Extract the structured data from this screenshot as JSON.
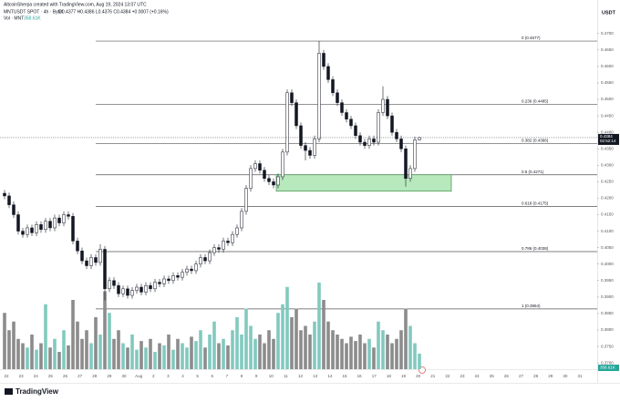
{
  "chart_data": {
    "type": "candlestick",
    "header": "AltcoinSherpa created with TradingView.com, Aug 19, 2024 13:07 UTC",
    "symbol": "MNTUSDT SPOT · 4h · Bybit",
    "ohlc_text": "O0.4377 H0.4386 L0.4376 C0.4384 +0.0007 (+0.16%)",
    "volume_title": "Vol · MNT",
    "volume_value_label": "358.61K",
    "currency": "USDT",
    "countdown": "02:52:14",
    "price_tag": {
      "value": 0.4384,
      "label": "0.4384"
    },
    "brand": "TradingView",
    "up_color": "#ffffff",
    "down_color": "#131722",
    "volume_up_color": "#82c9bf",
    "volume_down_color": "#8c8c8c",
    "zone_color": "#b7e9bd",
    "ylim": [
      0.3681,
      0.4774
    ],
    "yticks": [
      {
        "value": 0.37,
        "label": "0.3700"
      },
      {
        "value": 0.375,
        "label": "0.3750"
      },
      {
        "value": 0.38,
        "label": "0.3800"
      },
      {
        "value": 0.385,
        "label": "0.3850"
      },
      {
        "value": 0.39,
        "label": "0.3900"
      },
      {
        "value": 0.395,
        "label": "0.3950"
      },
      {
        "value": 0.4,
        "label": "0.4000"
      },
      {
        "value": 0.405,
        "label": "0.4050"
      },
      {
        "value": 0.41,
        "label": "0.4100"
      },
      {
        "value": 0.415,
        "label": "0.4150"
      },
      {
        "value": 0.42,
        "label": "0.4200"
      },
      {
        "value": 0.425,
        "label": "0.4250"
      },
      {
        "value": 0.43,
        "label": "0.4300"
      },
      {
        "value": 0.435,
        "label": "0.4350"
      },
      {
        "value": 0.44,
        "label": "0.4400"
      },
      {
        "value": 0.445,
        "label": "0.4450"
      },
      {
        "value": 0.45,
        "label": "0.4500"
      },
      {
        "value": 0.455,
        "label": "0.4550"
      },
      {
        "value": 0.46,
        "label": "0.4600"
      },
      {
        "value": 0.465,
        "label": "0.4650"
      },
      {
        "value": 0.47,
        "label": "0.4700"
      }
    ],
    "x_axis_labels": [
      "22",
      "23",
      "24",
      "25",
      "26",
      "27",
      "28",
      "29",
      "30",
      "Aug",
      "2",
      "3",
      "4",
      "5",
      "6",
      "7",
      "8",
      "9",
      "10",
      "11",
      "12",
      "13",
      "14",
      "15",
      "16",
      "17",
      "18",
      "19",
      "20",
      "21",
      "22",
      "23",
      "24",
      "25",
      "26",
      "27",
      "28",
      "29",
      "30",
      "31"
    ],
    "fib_levels": [
      {
        "value": 0.4677,
        "label": "0 (0.4677)"
      },
      {
        "value": 0.4485,
        "label": "0.236 (0.4485)"
      },
      {
        "value": 0.4366,
        "label": "0.382 (0.4366)"
      },
      {
        "value": 0.4271,
        "label": "0.5 (0.4271)"
      },
      {
        "value": 0.4175,
        "label": "0.618 (0.4175)"
      },
      {
        "value": 0.4038,
        "label": "0.786 (0.4038)"
      },
      {
        "value": 0.3864,
        "label": "1 (0.3864)"
      }
    ],
    "open": [
      0.4215,
      0.4207,
      0.418,
      0.415,
      0.41,
      0.409,
      0.411,
      0.4095,
      0.412,
      0.4105,
      0.413,
      0.411,
      0.414,
      0.4125,
      0.415,
      0.4145,
      0.407,
      0.404,
      0.401,
      0.3995,
      0.402,
      0.4005,
      0.4045,
      0.3925,
      0.395,
      0.3935,
      0.391,
      0.3925,
      0.3905,
      0.392,
      0.393,
      0.3915,
      0.3935,
      0.3925,
      0.3945,
      0.394,
      0.3955,
      0.395,
      0.3965,
      0.396,
      0.3975,
      0.3985,
      0.398,
      0.4,
      0.402,
      0.401,
      0.4035,
      0.405,
      0.4045,
      0.407,
      0.4065,
      0.409,
      0.411,
      0.416,
      0.423,
      0.429,
      0.4305,
      0.4285,
      0.426,
      0.425,
      0.424,
      0.4265,
      0.434,
      0.452,
      0.449,
      0.442,
      0.436,
      0.4345,
      0.433,
      0.438,
      0.464,
      0.46,
      0.456,
      0.452,
      0.449,
      0.446,
      0.444,
      0.442,
      0.439,
      0.437,
      0.436,
      0.438,
      0.437,
      0.446,
      0.45,
      0.445,
      0.44,
      0.438,
      0.435,
      0.426,
      0.429,
      0.4377
    ],
    "high": [
      0.4225,
      0.4217,
      0.419,
      0.416,
      0.411,
      0.412,
      0.412,
      0.413,
      0.413,
      0.414,
      0.414,
      0.415,
      0.415,
      0.416,
      0.416,
      0.4155,
      0.408,
      0.405,
      0.402,
      0.403,
      0.403,
      0.406,
      0.4055,
      0.396,
      0.396,
      0.3945,
      0.3935,
      0.3935,
      0.393,
      0.394,
      0.394,
      0.3945,
      0.3945,
      0.3955,
      0.3955,
      0.3965,
      0.3965,
      0.3975,
      0.3975,
      0.3985,
      0.3995,
      0.3995,
      0.401,
      0.403,
      0.403,
      0.4045,
      0.406,
      0.406,
      0.408,
      0.408,
      0.41,
      0.412,
      0.417,
      0.424,
      0.43,
      0.4315,
      0.4315,
      0.4295,
      0.427,
      0.426,
      0.4275,
      0.435,
      0.453,
      0.453,
      0.45,
      0.443,
      0.437,
      0.4355,
      0.439,
      0.4677,
      0.465,
      0.461,
      0.457,
      0.453,
      0.45,
      0.447,
      0.445,
      0.443,
      0.44,
      0.438,
      0.439,
      0.439,
      0.447,
      0.454,
      0.451,
      0.446,
      0.441,
      0.439,
      0.436,
      0.43,
      0.4387,
      0.4386
    ],
    "low": [
      0.4197,
      0.417,
      0.414,
      0.409,
      0.408,
      0.408,
      0.4085,
      0.4085,
      0.4095,
      0.4095,
      0.41,
      0.41,
      0.4115,
      0.4115,
      0.4135,
      0.406,
      0.403,
      0.4,
      0.3985,
      0.3985,
      0.3995,
      0.3995,
      0.389,
      0.3915,
      0.3925,
      0.39,
      0.39,
      0.3895,
      0.3895,
      0.391,
      0.3905,
      0.3905,
      0.3915,
      0.3915,
      0.393,
      0.393,
      0.394,
      0.394,
      0.395,
      0.395,
      0.3965,
      0.397,
      0.397,
      0.399,
      0.4,
      0.4,
      0.4025,
      0.4035,
      0.4035,
      0.4055,
      0.4055,
      0.408,
      0.41,
      0.415,
      0.422,
      0.428,
      0.4275,
      0.425,
      0.424,
      0.423,
      0.423,
      0.4255,
      0.433,
      0.448,
      0.441,
      0.435,
      0.4315,
      0.432,
      0.432,
      0.437,
      0.459,
      0.455,
      0.451,
      0.448,
      0.445,
      0.443,
      0.441,
      0.438,
      0.436,
      0.435,
      0.435,
      0.436,
      0.436,
      0.445,
      0.444,
      0.439,
      0.437,
      0.434,
      0.4235,
      0.425,
      0.428,
      0.4376
    ],
    "close": [
      0.4207,
      0.418,
      0.415,
      0.41,
      0.409,
      0.411,
      0.4095,
      0.412,
      0.4105,
      0.413,
      0.411,
      0.414,
      0.4125,
      0.415,
      0.4145,
      0.407,
      0.404,
      0.401,
      0.3995,
      0.402,
      0.4005,
      0.4045,
      0.3925,
      0.395,
      0.3935,
      0.391,
      0.3925,
      0.3905,
      0.392,
      0.393,
      0.3915,
      0.3935,
      0.3925,
      0.3945,
      0.394,
      0.3955,
      0.395,
      0.3965,
      0.396,
      0.3975,
      0.3985,
      0.398,
      0.4,
      0.402,
      0.401,
      0.4035,
      0.405,
      0.4045,
      0.407,
      0.4065,
      0.409,
      0.411,
      0.416,
      0.423,
      0.429,
      0.4305,
      0.4285,
      0.426,
      0.425,
      0.424,
      0.4265,
      0.434,
      0.452,
      0.449,
      0.442,
      0.436,
      0.4345,
      0.433,
      0.438,
      0.464,
      0.46,
      0.456,
      0.452,
      0.449,
      0.446,
      0.444,
      0.442,
      0.439,
      0.437,
      0.436,
      0.438,
      0.437,
      0.446,
      0.45,
      0.445,
      0.44,
      0.438,
      0.435,
      0.426,
      0.429,
      0.4377,
      0.4384
    ],
    "volume": [
      1300000,
      900000,
      1100000,
      700000,
      600000,
      500000,
      800000,
      450000,
      600000,
      1500000,
      500000,
      700000,
      400000,
      900000,
      550000,
      1600000,
      1100000,
      700000,
      900000,
      600000,
      1200000,
      800000,
      1800000,
      1300000,
      700000,
      900000,
      600000,
      500000,
      800000,
      450000,
      650000,
      500000,
      700000,
      400000,
      600000,
      550000,
      800000,
      450000,
      700000,
      600000,
      500000,
      750000,
      650000,
      900000,
      500000,
      800000,
      1100000,
      600000,
      700000,
      550000,
      900000,
      1200000,
      800000,
      1400000,
      1000000,
      700000,
      800000,
      600000,
      900000,
      700000,
      1300000,
      1500000,
      1900000,
      1200000,
      1400000,
      900000,
      1000000,
      800000,
      1100000,
      2000000,
      1600000,
      1100000,
      900000,
      800000,
      700000,
      600000,
      750000,
      650000,
      800000,
      600000,
      700000,
      500000,
      1100000,
      900000,
      800000,
      600000,
      700000,
      900000,
      1400000,
      1000000,
      600000,
      358610
    ]
  }
}
